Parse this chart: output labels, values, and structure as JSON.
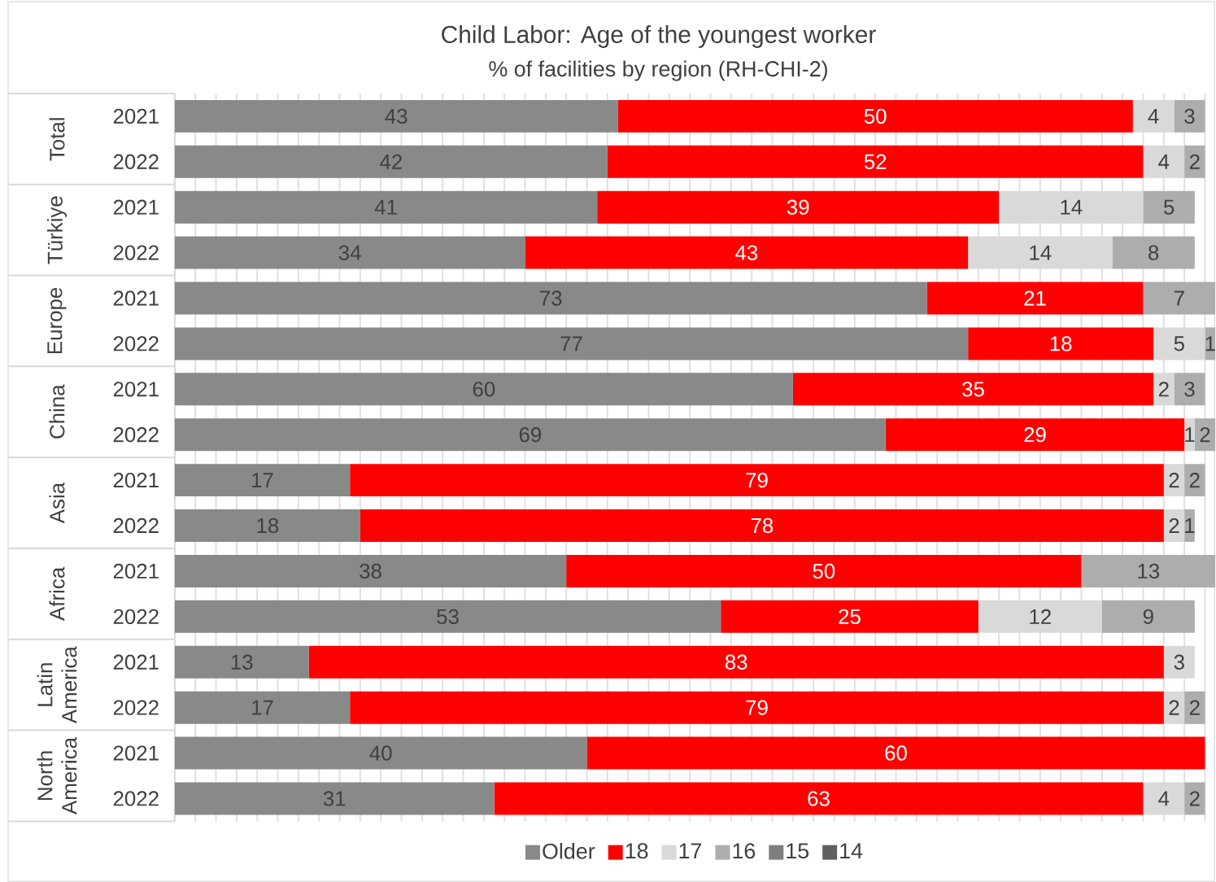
{
  "chart_data": {
    "type": "bar",
    "orientation": "horizontal",
    "stacked": true,
    "title": "Child Labor: Age of the youngest worker",
    "subtitle": "% of facilities by region (RH-CHI-2)",
    "categories": [
      "2021",
      "2022",
      "2021",
      "2022",
      "2021",
      "2022",
      "2021",
      "2022",
      "2021",
      "2022",
      "2021",
      "2022",
      "2021",
      "2022",
      "2021",
      "2022"
    ],
    "annotations": [
      "Total",
      "Türkiye",
      "Europe",
      "China",
      "Asia",
      "Africa",
      "Latin America",
      "North America"
    ],
    "series": [
      {
        "name": "Older",
        "color": "#898989",
        "values": [
          43,
          42,
          41,
          34,
          73,
          77,
          60,
          69,
          17,
          18,
          38,
          53,
          13,
          17,
          40,
          31
        ]
      },
      {
        "name": "18",
        "color": "#ff0000",
        "values": [
          50,
          52,
          39,
          43,
          21,
          18,
          35,
          29,
          79,
          78,
          50,
          25,
          83,
          79,
          60,
          63
        ]
      },
      {
        "name": "17",
        "color": "#d9d9d9",
        "values": [
          4,
          4,
          14,
          14,
          null,
          5,
          2,
          1,
          2,
          2,
          null,
          12,
          3,
          2,
          null,
          4
        ]
      },
      {
        "name": "16",
        "color": "#adadad",
        "values": [
          3,
          2,
          5,
          8,
          7,
          1,
          3,
          2,
          2,
          1,
          13,
          9,
          null,
          2,
          null,
          2
        ]
      },
      {
        "name": "15",
        "color": "#7f7f7f",
        "values": [
          null,
          null,
          null,
          null,
          null,
          null,
          null,
          null,
          null,
          null,
          null,
          null,
          null,
          null,
          null,
          null
        ]
      },
      {
        "name": "14",
        "color": "#5f5f5f",
        "values": [
          null,
          null,
          null,
          null,
          null,
          null,
          null,
          null,
          null,
          null,
          null,
          null,
          null,
          null,
          null,
          null
        ]
      }
    ],
    "data_labels": true,
    "tick_labels": "y",
    "grid": "x",
    "legend": "bottom"
  }
}
